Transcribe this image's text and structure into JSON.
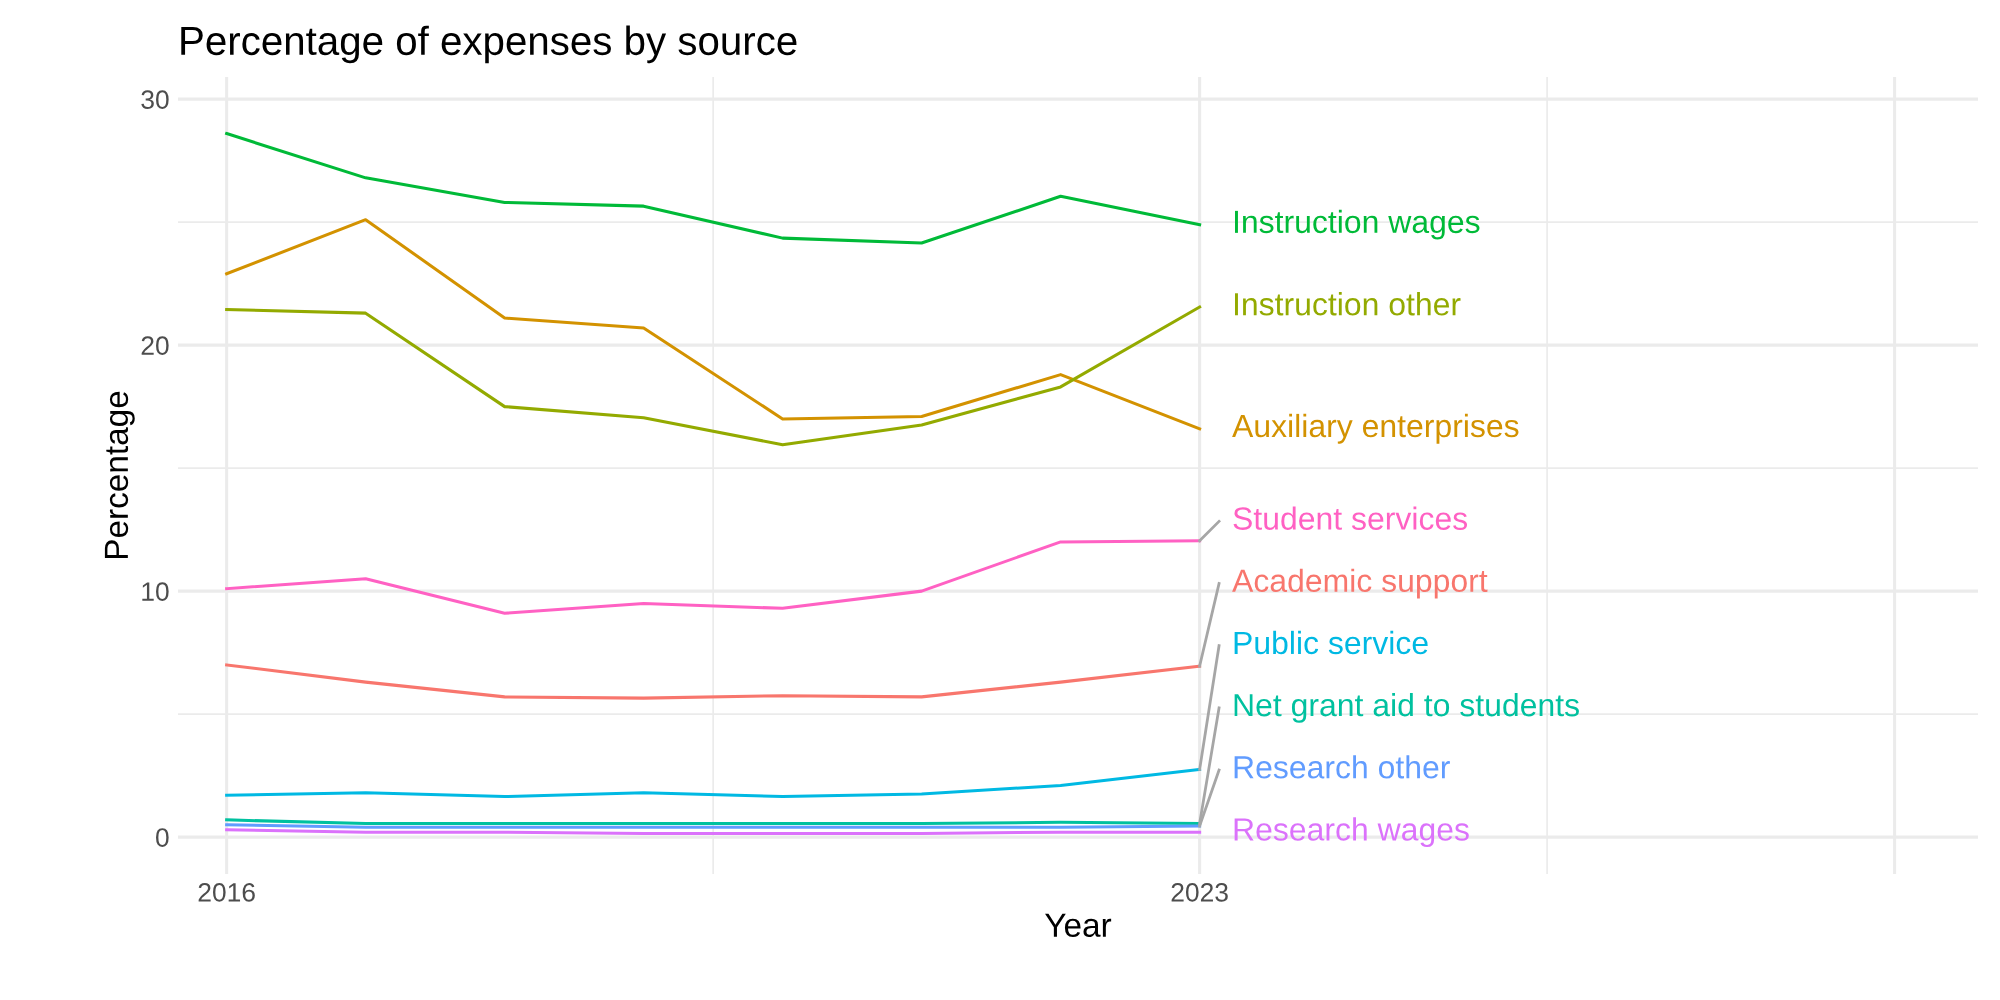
{
  "chart_data": {
    "type": "line",
    "title": "Percentage of expenses by source",
    "xlabel": "Year",
    "ylabel": "Percentage",
    "x": [
      2016,
      2017,
      2018,
      2019,
      2020,
      2021,
      2022,
      2023
    ],
    "series": [
      {
        "name": "Academic support",
        "color": "#f8766d",
        "values": [
          7.0,
          6.3,
          5.7,
          5.65,
          5.75,
          5.7,
          6.3,
          6.95
        ]
      },
      {
        "name": "Auxiliary enterprises",
        "color": "#d39200",
        "values": [
          22.9,
          25.1,
          21.1,
          20.7,
          17.0,
          17.1,
          18.8,
          16.6
        ]
      },
      {
        "name": "Instruction other",
        "color": "#93aa00",
        "values": [
          21.45,
          21.3,
          17.5,
          17.05,
          15.95,
          16.75,
          18.3,
          21.55
        ]
      },
      {
        "name": "Instruction wages",
        "color": "#00ba38",
        "values": [
          28.6,
          26.8,
          25.8,
          25.65,
          24.35,
          24.15,
          26.05,
          24.9
        ]
      },
      {
        "name": "Net grant aid to students",
        "color": "#00c19f",
        "values": [
          0.7,
          0.55,
          0.55,
          0.55,
          0.55,
          0.55,
          0.6,
          0.55
        ]
      },
      {
        "name": "Public service",
        "color": "#00b9e3",
        "values": [
          1.7,
          1.8,
          1.65,
          1.8,
          1.65,
          1.75,
          2.1,
          2.75
        ]
      },
      {
        "name": "Research other",
        "color": "#619cff",
        "values": [
          0.5,
          0.4,
          0.4,
          0.4,
          0.4,
          0.4,
          0.4,
          0.45
        ]
      },
      {
        "name": "Research wages",
        "color": "#db72fb",
        "values": [
          0.3,
          0.2,
          0.2,
          0.15,
          0.15,
          0.15,
          0.2,
          0.2
        ]
      },
      {
        "name": "Student services",
        "color": "#ff61c3",
        "values": [
          10.1,
          10.5,
          9.1,
          9.5,
          9.3,
          10.0,
          12.0,
          12.05
        ]
      }
    ],
    "xlim": [
      2015.65,
      2028.6
    ],
    "ylim": [
      -1.5,
      30.9
    ],
    "xticks": [
      2016,
      2023,
      {
        "value": 2028,
        "label": null
      }
    ],
    "yticks": [
      0,
      10,
      20,
      30
    ],
    "grid": true,
    "legend": false,
    "marker": "none",
    "line_style": "solid"
  }
}
